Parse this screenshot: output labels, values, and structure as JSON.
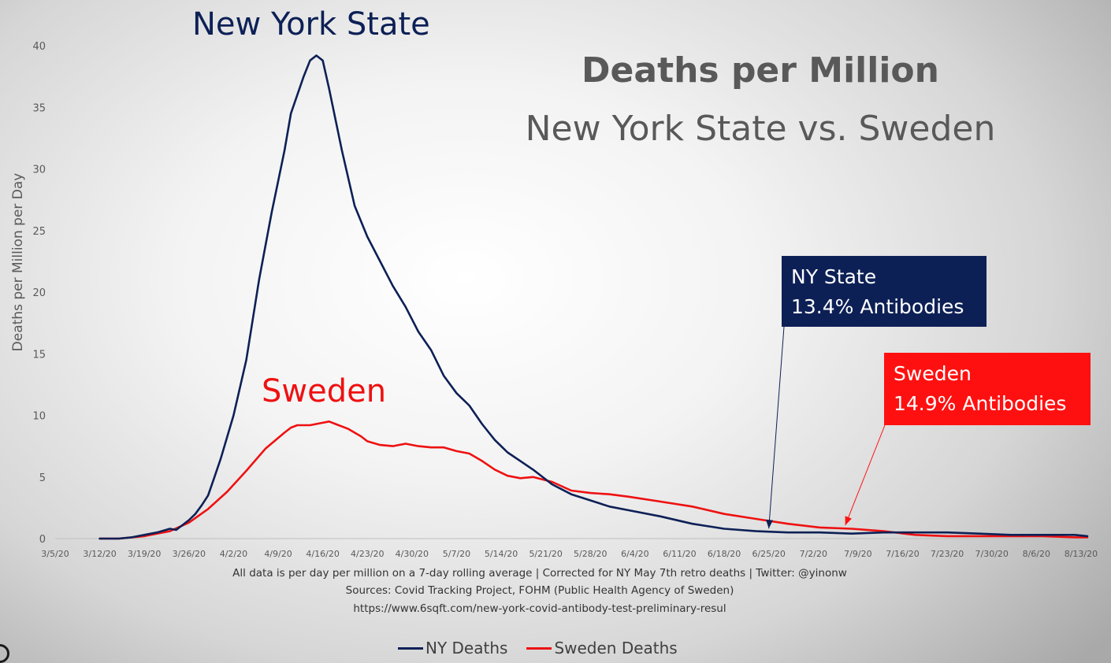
{
  "chart_data": {
    "type": "line",
    "title": "Deaths per Million",
    "subtitle": "New York State  vs. Sweden",
    "ylabel": "Deaths per Million per Day",
    "xlabel": "",
    "ylim": [
      0,
      40
    ],
    "yticks": [
      "0",
      "5",
      "10",
      "15",
      "20",
      "25",
      "30",
      "35",
      "40"
    ],
    "xticks": [
      "3/5/20",
      "3/12/20",
      "3/19/20",
      "3/26/20",
      "4/2/20",
      "4/9/20",
      "4/16/20",
      "4/23/20",
      "4/30/20",
      "5/7/20",
      "5/14/20",
      "5/21/20",
      "5/28/20",
      "6/4/20",
      "6/11/20",
      "6/18/20",
      "6/25/20",
      "7/2/20",
      "7/9/20",
      "7/16/20",
      "7/23/20",
      "7/30/20",
      "8/6/20",
      "8/13/20"
    ],
    "x_day_range": [
      0,
      162
    ],
    "series": [
      {
        "name": "NY Deaths",
        "color": "#0d2056",
        "x": [
          7,
          10,
          12,
          14,
          16,
          18,
          19,
          21,
          22,
          23,
          24,
          25,
          26,
          28,
          30,
          32,
          34,
          36,
          37,
          38,
          39,
          40,
          41,
          42,
          43,
          45,
          47,
          49,
          51,
          53,
          55,
          57,
          59,
          61,
          63,
          65,
          67,
          69,
          71,
          73,
          75,
          78,
          81,
          84,
          87,
          90,
          95,
          100,
          105,
          110,
          115,
          120,
          125,
          130,
          135,
          140,
          145,
          150,
          155,
          160,
          162
        ],
        "values": [
          0,
          0,
          0.1,
          0.3,
          0.5,
          0.8,
          0.7,
          1.5,
          2.0,
          2.7,
          3.5,
          5.0,
          6.5,
          10.0,
          14.5,
          21.0,
          26.5,
          31.5,
          34.5,
          36.0,
          37.5,
          38.8,
          39.2,
          38.8,
          36.5,
          31.5,
          27.0,
          24.5,
          22.5,
          20.5,
          18.8,
          16.8,
          15.3,
          13.2,
          11.8,
          10.8,
          9.3,
          8.0,
          7.0,
          6.3,
          5.6,
          4.4,
          3.6,
          3.1,
          2.6,
          2.3,
          1.8,
          1.2,
          0.8,
          0.6,
          0.5,
          0.5,
          0.4,
          0.5,
          0.5,
          0.5,
          0.4,
          0.3,
          0.3,
          0.3,
          0.2
        ]
      },
      {
        "name": "Sweden Deaths",
        "color": "#ee1111",
        "x": [
          7,
          10,
          14,
          18,
          21,
          24,
          27,
          30,
          33,
          36,
          37,
          38,
          39,
          40,
          42,
          43,
          44,
          46,
          48,
          49,
          51,
          53,
          55,
          57,
          59,
          61,
          63,
          65,
          67,
          69,
          71,
          73,
          75,
          78,
          81,
          84,
          87,
          90,
          95,
          100,
          105,
          110,
          115,
          120,
          125,
          130,
          135,
          140,
          145,
          150,
          155,
          160,
          162
        ],
        "values": [
          0,
          0,
          0.2,
          0.6,
          1.3,
          2.4,
          3.8,
          5.5,
          7.3,
          8.6,
          9.0,
          9.2,
          9.2,
          9.2,
          9.4,
          9.5,
          9.3,
          8.9,
          8.3,
          7.9,
          7.6,
          7.5,
          7.7,
          7.5,
          7.4,
          7.4,
          7.1,
          6.9,
          6.3,
          5.6,
          5.1,
          4.9,
          5.0,
          4.6,
          3.9,
          3.7,
          3.6,
          3.4,
          3.0,
          2.6,
          2.0,
          1.6,
          1.2,
          0.9,
          0.8,
          0.6,
          0.3,
          0.2,
          0.2,
          0.2,
          0.2,
          0.1,
          0.1
        ]
      }
    ],
    "series_labels": {
      "ny": "New York State",
      "sweden": "Sweden"
    },
    "annotations": [
      {
        "series": "NY Deaths",
        "lines": [
          "NY State",
          "13.4% Antibodies"
        ],
        "bg": "#0d2056",
        "points_to_day": 112
      },
      {
        "series": "Sweden Deaths",
        "lines": [
          "Sweden",
          "14.9% Antibodies"
        ],
        "bg": "#ff1010",
        "points_to_day": 124
      }
    ],
    "footer": [
      "All data is per day per million on a 7-day rolling average | Corrected for NY May 7th retro deaths | Twitter: @yinonw",
      "Sources: Covid Tracking Project, FOHM (Public Health Agency of Sweden)",
      "https://www.6sqft.com/new-york-covid-antibody-test-preliminary-resul"
    ],
    "legend": [
      {
        "label": "NY Deaths",
        "color": "#0d2056"
      },
      {
        "label": "Sweden Deaths",
        "color": "#ee1111"
      }
    ],
    "legend_position": "bottom",
    "grid": false
  }
}
